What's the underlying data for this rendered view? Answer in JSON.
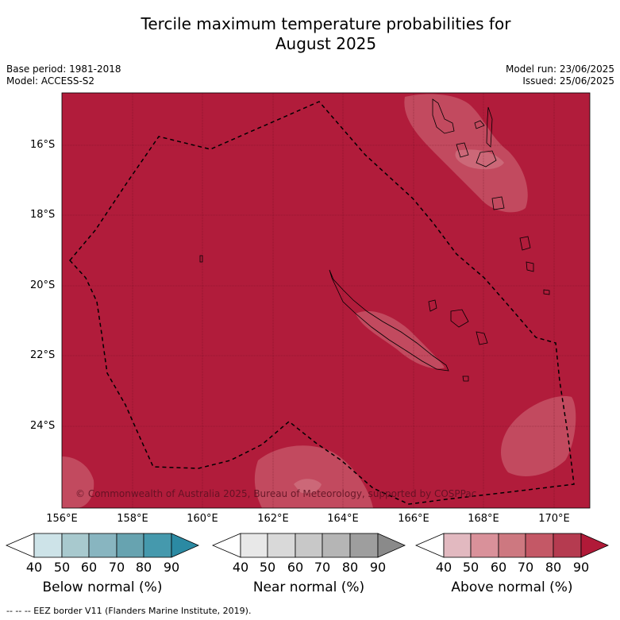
{
  "title_line1": "Tercile maximum temperature probabilities for",
  "title_line2": "August 2025",
  "base_period": "Base period: 1981-2018",
  "model": "Model: ACCESS-S2",
  "model_run": "Model run: 23/06/2025",
  "issued": "Issued: 25/06/2025",
  "copyright": "© Commonwealth of Australia 2025, Bureau of Meteorology, supported by COSPPac",
  "footnote": "-- -- -- EEZ border V11 (Flanders Marine Institute, 2019).",
  "lat_ticks": [
    "16°S",
    "18°S",
    "20°S",
    "22°S",
    "24°S"
  ],
  "lon_ticks": [
    "156°E",
    "158°E",
    "160°E",
    "162°E",
    "164°E",
    "166°E",
    "168°E",
    "170°E"
  ],
  "legends": [
    {
      "title": "Below normal (%)",
      "ticks": [
        "40",
        "50",
        "60",
        "70",
        "80",
        "90"
      ],
      "colors": [
        "#ffffff",
        "#cde3e8",
        "#a8c9ce",
        "#88b5c0",
        "#67a3b0",
        "#4599ad",
        "#2b8aa3"
      ]
    },
    {
      "title": "Near normal (%)",
      "ticks": [
        "40",
        "50",
        "60",
        "70",
        "80",
        "90"
      ],
      "colors": [
        "#ffffff",
        "#e8e8e8",
        "#d9d9d9",
        "#c8c8c8",
        "#b5b5b5",
        "#9e9e9e",
        "#8a8a8a"
      ]
    },
    {
      "title": "Above normal (%)",
      "ticks": [
        "40",
        "50",
        "60",
        "70",
        "80",
        "90"
      ],
      "colors": [
        "#ffffff",
        "#e2b9c0",
        "#d9919a",
        "#cd7880",
        "#c45866",
        "#b53b50",
        "#b11a38"
      ]
    }
  ],
  "colors": {
    "map_fill": "#b11c3b",
    "light_patch": "#c24a5f",
    "lighter_patch": "#cc6878"
  }
}
